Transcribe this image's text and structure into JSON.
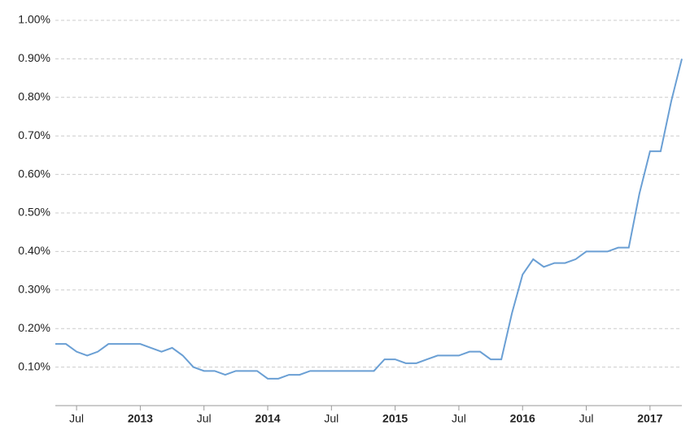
{
  "chart_data": {
    "type": "line",
    "x": [
      "2012-05",
      "2012-06",
      "2012-07",
      "2012-08",
      "2012-09",
      "2012-10",
      "2012-11",
      "2012-12",
      "2013-01",
      "2013-02",
      "2013-03",
      "2013-04",
      "2013-05",
      "2013-06",
      "2013-07",
      "2013-08",
      "2013-09",
      "2013-10",
      "2013-11",
      "2013-12",
      "2014-01",
      "2014-02",
      "2014-03",
      "2014-04",
      "2014-05",
      "2014-06",
      "2014-07",
      "2014-08",
      "2014-09",
      "2014-10",
      "2014-11",
      "2014-12",
      "2015-01",
      "2015-02",
      "2015-03",
      "2015-04",
      "2015-05",
      "2015-06",
      "2015-07",
      "2015-08",
      "2015-09",
      "2015-10",
      "2015-11",
      "2015-12",
      "2016-01",
      "2016-02",
      "2016-03",
      "2016-04",
      "2016-05",
      "2016-06",
      "2016-07",
      "2016-08",
      "2016-09",
      "2016-10",
      "2016-11",
      "2016-12",
      "2017-01",
      "2017-02",
      "2017-03",
      "2017-04"
    ],
    "series": [
      {
        "color": "#6a9fd4",
        "values": [
          0.16,
          0.16,
          0.14,
          0.13,
          0.14,
          0.16,
          0.16,
          0.16,
          0.16,
          0.15,
          0.14,
          0.15,
          0.13,
          0.1,
          0.09,
          0.09,
          0.08,
          0.09,
          0.09,
          0.09,
          0.07,
          0.07,
          0.08,
          0.08,
          0.09,
          0.09,
          0.09,
          0.09,
          0.09,
          0.09,
          0.09,
          0.12,
          0.12,
          0.11,
          0.11,
          0.12,
          0.13,
          0.13,
          0.13,
          0.14,
          0.14,
          0.12,
          0.12,
          0.24,
          0.34,
          0.38,
          0.36,
          0.37,
          0.37,
          0.38,
          0.4,
          0.4,
          0.4,
          0.41,
          0.41,
          0.55,
          0.66,
          0.66,
          0.79,
          0.9
        ]
      }
    ],
    "xlim": [
      "2012-05",
      "2017-04"
    ],
    "xticks": [
      {
        "value": "2012-07",
        "label": "Jul"
      },
      {
        "value": "2013-01",
        "label": "2013"
      },
      {
        "value": "2013-07",
        "label": "Jul"
      },
      {
        "value": "2014-01",
        "label": "2014"
      },
      {
        "value": "2014-07",
        "label": "Jul"
      },
      {
        "value": "2015-01",
        "label": "2015"
      },
      {
        "value": "2015-07",
        "label": "Jul"
      },
      {
        "value": "2016-01",
        "label": "2016"
      },
      {
        "value": "2016-07",
        "label": "Jul"
      },
      {
        "value": "2017-01",
        "label": "2017"
      }
    ],
    "ylim": [
      0,
      1.0
    ],
    "yticks": [
      {
        "value": 0.1,
        "label": "0.10%"
      },
      {
        "value": 0.2,
        "label": "0.20%"
      },
      {
        "value": 0.3,
        "label": "0.30%"
      },
      {
        "value": 0.4,
        "label": "0.40%"
      },
      {
        "value": 0.5,
        "label": "0.50%"
      },
      {
        "value": 0.6,
        "label": "0.60%"
      },
      {
        "value": 0.7,
        "label": "0.70%"
      },
      {
        "value": 0.8,
        "label": "0.80%"
      },
      {
        "value": 0.9,
        "label": "0.90%"
      },
      {
        "value": 1.0,
        "label": "1.00%"
      }
    ],
    "grid": true
  }
}
